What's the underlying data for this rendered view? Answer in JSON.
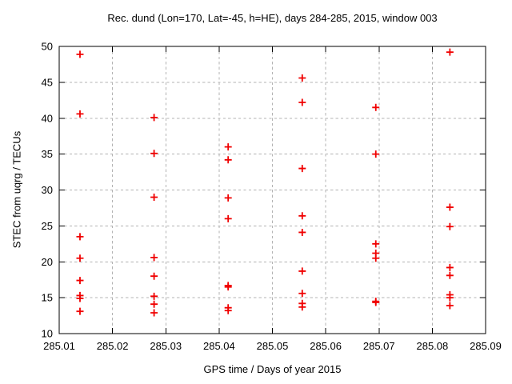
{
  "chart_data": {
    "type": "scatter",
    "title": "Rec. dund (Lon=170, Lat=-45, h=HE), days 284-285, 2015, window 003",
    "xlabel": "GPS time / Days of year 2015",
    "ylabel": "STEC from uqrg / TECUs",
    "xlim": [
      285.01,
      285.09
    ],
    "ylim": [
      10,
      50
    ],
    "x_ticks": [
      285.01,
      285.02,
      285.03,
      285.04,
      285.05,
      285.06,
      285.07,
      285.08,
      285.09
    ],
    "x_tick_labels": [
      "285.01",
      "285.02",
      "285.03",
      "285.04",
      "285.05",
      "285.06",
      "285.07",
      "285.08",
      "285.09"
    ],
    "y_ticks": [
      10,
      15,
      20,
      25,
      30,
      35,
      40,
      45,
      50
    ],
    "y_tick_labels": [
      "10",
      "15",
      "20",
      "25",
      "30",
      "35",
      "40",
      "45",
      "50"
    ],
    "grid": true,
    "legend_position": "none",
    "marker": "plus",
    "colors": {
      "marker": "#f00000",
      "grid": "#b3b3b3",
      "axis": "#000000",
      "background": "#ffffff",
      "text": "#000000"
    },
    "series": [
      {
        "name": "STEC",
        "points": [
          [
            285.0139,
            48.9
          ],
          [
            285.0139,
            40.6
          ],
          [
            285.0139,
            23.5
          ],
          [
            285.0139,
            20.5
          ],
          [
            285.0139,
            17.4
          ],
          [
            285.0139,
            15.3
          ],
          [
            285.0139,
            14.9
          ],
          [
            285.0139,
            13.1
          ],
          [
            285.0278,
            40.1
          ],
          [
            285.0278,
            35.1
          ],
          [
            285.0278,
            29.0
          ],
          [
            285.0278,
            20.6
          ],
          [
            285.0278,
            18.0
          ],
          [
            285.0278,
            15.2
          ],
          [
            285.0278,
            14.1
          ],
          [
            285.0278,
            12.9
          ],
          [
            285.0417,
            36.0
          ],
          [
            285.0417,
            34.2
          ],
          [
            285.0417,
            28.9
          ],
          [
            285.0417,
            26.0
          ],
          [
            285.0417,
            16.7
          ],
          [
            285.0417,
            16.5
          ],
          [
            285.0417,
            13.6
          ],
          [
            285.0417,
            13.2
          ],
          [
            285.0556,
            45.6
          ],
          [
            285.0556,
            42.2
          ],
          [
            285.0556,
            33.0
          ],
          [
            285.0556,
            26.4
          ],
          [
            285.0556,
            24.1
          ],
          [
            285.0556,
            18.7
          ],
          [
            285.0556,
            15.6
          ],
          [
            285.0556,
            14.2
          ],
          [
            285.0556,
            13.7
          ],
          [
            285.0694,
            41.5
          ],
          [
            285.0694,
            35.0
          ],
          [
            285.0694,
            22.5
          ],
          [
            285.0694,
            21.2
          ],
          [
            285.0694,
            20.5
          ],
          [
            285.0694,
            14.5
          ],
          [
            285.0694,
            14.35
          ],
          [
            285.0833,
            49.2
          ],
          [
            285.0833,
            27.6
          ],
          [
            285.0833,
            24.9
          ],
          [
            285.0833,
            19.2
          ],
          [
            285.0833,
            18.1
          ],
          [
            285.0833,
            15.4
          ],
          [
            285.0833,
            15.0
          ],
          [
            285.0833,
            13.9
          ]
        ]
      }
    ]
  }
}
